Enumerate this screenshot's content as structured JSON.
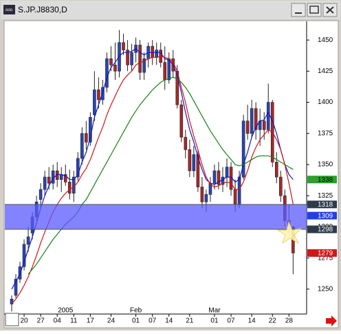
{
  "window_title": "S.JP.J8830,D",
  "chart_data": {
    "type": "candlestick",
    "categories": [
      null,
      null,
      null,
      "20",
      null,
      null,
      null,
      "27",
      null,
      null,
      null,
      "04",
      null,
      null,
      null,
      "11",
      null,
      null,
      null,
      "17",
      null,
      null,
      null,
      null,
      "24",
      null,
      null,
      null,
      null,
      null,
      "01",
      null,
      null,
      null,
      "07",
      null,
      null,
      null,
      "14",
      null,
      null,
      null,
      null,
      "21",
      null,
      null,
      null,
      null,
      null,
      "01",
      null,
      null,
      null,
      "07",
      null,
      null,
      null,
      null,
      "14",
      null,
      null,
      null,
      null,
      "22",
      null,
      null,
      null,
      "28",
      null
    ],
    "month_labels": [
      null,
      null,
      null,
      null,
      null,
      null,
      null,
      null,
      null,
      null,
      null,
      null,
      null,
      "2005",
      null,
      null,
      null,
      null,
      null,
      null,
      null,
      null,
      null,
      null,
      null,
      null,
      null,
      null,
      null,
      null,
      "Feb",
      null,
      null,
      null,
      null,
      null,
      null,
      null,
      null,
      null,
      null,
      null,
      null,
      null,
      null,
      null,
      null,
      null,
      null,
      "Mar",
      null,
      null,
      null,
      null,
      null,
      null,
      null,
      null,
      null,
      null,
      null,
      null,
      null,
      null,
      null,
      null,
      null,
      null,
      null
    ],
    "open": [
      1238,
      1245,
      1258,
      1268,
      1286,
      1295,
      1308,
      1322,
      1330,
      1340,
      1335,
      1345,
      1338,
      1342,
      1336,
      1327,
      1340,
      1355,
      1375,
      1368,
      1390,
      1410,
      1402,
      1412,
      1435,
      1430,
      1425,
      1448,
      1442,
      1430,
      1440,
      1446,
      1424,
      1435,
      1445,
      1436,
      1442,
      1432,
      1418,
      1435,
      1425,
      1398,
      1372,
      1362,
      1345,
      1358,
      1332,
      1320,
      1326,
      1335,
      1345,
      1334,
      1340,
      1348,
      1330,
      1318,
      1340,
      1385,
      1375,
      1395,
      1378,
      1385,
      1378,
      1400,
      1352,
      1340,
      1325,
      1305,
      1300
    ],
    "high": [
      1245,
      1262,
      1272,
      1290,
      1300,
      1312,
      1325,
      1335,
      1345,
      1348,
      1350,
      1352,
      1348,
      1350,
      1346,
      1345,
      1360,
      1380,
      1385,
      1392,
      1425,
      1420,
      1418,
      1440,
      1445,
      1448,
      1458,
      1455,
      1450,
      1447,
      1452,
      1450,
      1440,
      1448,
      1450,
      1448,
      1448,
      1445,
      1440,
      1442,
      1430,
      1402,
      1378,
      1370,
      1365,
      1362,
      1340,
      1330,
      1340,
      1350,
      1352,
      1348,
      1355,
      1352,
      1338,
      1345,
      1390,
      1398,
      1402,
      1400,
      1395,
      1392,
      1415,
      1402,
      1360,
      1345,
      1330,
      1318,
      1300
    ],
    "low": [
      1232,
      1243,
      1255,
      1265,
      1280,
      1290,
      1305,
      1315,
      1325,
      1330,
      1330,
      1332,
      1328,
      1333,
      1322,
      1320,
      1337,
      1350,
      1362,
      1365,
      1385,
      1395,
      1398,
      1408,
      1425,
      1418,
      1420,
      1438,
      1425,
      1425,
      1432,
      1418,
      1418,
      1428,
      1430,
      1430,
      1428,
      1410,
      1415,
      1420,
      1395,
      1368,
      1355,
      1340,
      1340,
      1328,
      1315,
      1312,
      1320,
      1330,
      1330,
      1328,
      1332,
      1325,
      1312,
      1315,
      1338,
      1370,
      1372,
      1370,
      1365,
      1370,
      1375,
      1348,
      1335,
      1320,
      1300,
      1295,
      1262
    ],
    "close": [
      1242,
      1258,
      1268,
      1286,
      1292,
      1308,
      1320,
      1330,
      1340,
      1335,
      1345,
      1338,
      1342,
      1336,
      1327,
      1340,
      1355,
      1375,
      1368,
      1388,
      1410,
      1402,
      1412,
      1435,
      1430,
      1425,
      1448,
      1442,
      1430,
      1440,
      1446,
      1424,
      1435,
      1445,
      1436,
      1442,
      1432,
      1418,
      1435,
      1425,
      1398,
      1372,
      1362,
      1345,
      1358,
      1332,
      1320,
      1326,
      1335,
      1345,
      1334,
      1340,
      1348,
      1330,
      1318,
      1340,
      1385,
      1375,
      1395,
      1378,
      1385,
      1378,
      1400,
      1352,
      1340,
      1325,
      1305,
      1300,
      1279
    ],
    "up_color": "#2846b4",
    "down_color": "#a82828",
    "moving_averages": [
      {
        "color": "#1414c8",
        "values": [
          1250,
          1256,
          1262,
          1272,
          1282,
          1292,
          1303,
          1315,
          1325,
          1333,
          1339,
          1342,
          1342,
          1341,
          1338,
          1338,
          1342,
          1352,
          1360,
          1372,
          1388,
          1398,
          1408,
          1420,
          1428,
          1432,
          1437,
          1440,
          1440,
          1441,
          1443,
          1440,
          1438,
          1440,
          1440,
          1440,
          1440,
          1435,
          1434,
          1430,
          1422,
          1408,
          1392,
          1378,
          1368,
          1356,
          1346,
          1338,
          1335,
          1334,
          1336,
          1338,
          1340,
          1340,
          1336,
          1338,
          1350,
          1360,
          1372,
          1380,
          1385,
          1386,
          1392,
          1385,
          1375,
          1362,
          1350,
          1342,
          1338
        ]
      },
      {
        "color": "#d21414",
        "values": [
          1238,
          1242,
          1247,
          1253,
          1260,
          1268,
          1277,
          1287,
          1296,
          1304,
          1312,
          1318,
          1323,
          1327,
          1330,
          1332,
          1336,
          1342,
          1347,
          1354,
          1363,
          1372,
          1380,
          1390,
          1398,
          1405,
          1412,
          1418,
          1422,
          1425,
          1430,
          1432,
          1433,
          1435,
          1436,
          1436,
          1437,
          1436,
          1435,
          1432,
          1425,
          1412,
          1400,
          1385,
          1373,
          1362,
          1350,
          1340,
          1334,
          1332,
          1333,
          1335,
          1336,
          1335,
          1330,
          1330,
          1336,
          1345,
          1356,
          1364,
          1370,
          1374,
          1378,
          1376,
          1370,
          1362,
          1350,
          1335,
          1318
        ]
      },
      {
        "color": "#148214",
        "values": [
          null,
          null,
          null,
          null,
          1262,
          1266,
          1270,
          1275,
          1280,
          1285,
          1290,
          1294,
          1298,
          1302,
          1305,
          1308,
          1312,
          1318,
          1322,
          1328,
          1334,
          1340,
          1346,
          1352,
          1358,
          1364,
          1370,
          1376,
          1382,
          1388,
          1393,
          1398,
          1402,
          1406,
          1410,
          1413,
          1416,
          1418,
          1419,
          1420,
          1419,
          1416,
          1412,
          1407,
          1401,
          1395,
          1389,
          1383,
          1377,
          1372,
          1367,
          1362,
          1358,
          1354,
          1350,
          1349,
          1350,
          1352,
          1354,
          1356,
          1357,
          1357,
          1357,
          1356,
          1354,
          1352,
          1350,
          1348,
          1346
        ]
      }
    ],
    "band": [
      1298,
      1318
    ],
    "band_color": "#5a5aff",
    "ylim": [
      1230,
      1465
    ],
    "yticks": [
      1250,
      1275,
      1300,
      1325,
      1350,
      1375,
      1400,
      1425,
      1450
    ],
    "markers": [
      {
        "value": 1338,
        "color": "#2e9e2e",
        "text_color": "#000000"
      },
      {
        "value": 1318,
        "color": "#2c3a4a",
        "text_color": "#ffffff"
      },
      {
        "value": 1309,
        "color": "#2040e0",
        "text_color": "#ffffff"
      },
      {
        "value": 1298,
        "color": "#2c3a4a",
        "text_color": "#ffffff"
      },
      {
        "value": 1279,
        "color": "#d01818",
        "text_color": "#ffffff"
      }
    ]
  }
}
